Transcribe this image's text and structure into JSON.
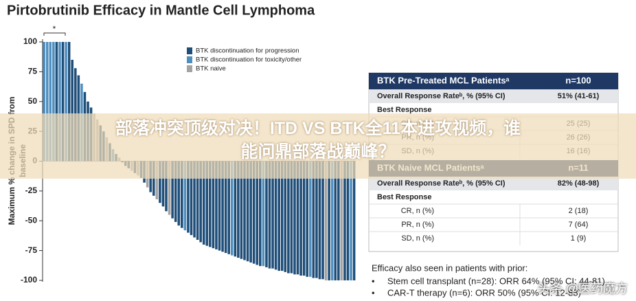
{
  "chart_data": {
    "type": "bar",
    "title": "Pirtobrutinib Efficacy in Mantle Cell Lymphoma",
    "ylabel": [
      "Maximum % change in SPD from",
      "baseline"
    ],
    "annotation": "*",
    "ylim": [
      -100,
      100
    ],
    "yticks": [
      100,
      75,
      50,
      25,
      0,
      -25,
      -50,
      -75,
      -100
    ],
    "grid": false,
    "legend": "upper-center",
    "series": [
      {
        "name": "BTK discontinuation for progression",
        "color": "#1f4e79",
        "values": [
          null,
          null,
          null,
          null,
          100,
          null,
          100,
          null,
          100,
          85,
          78,
          72,
          null,
          58,
          50,
          45,
          null,
          null,
          30,
          25,
          null,
          15,
          null,
          6,
          null,
          -1,
          -4,
          -6,
          null,
          -10,
          null,
          -14,
          -18,
          null,
          -26,
          -29,
          null,
          -35,
          -38,
          -42,
          null,
          -48,
          -51,
          -54,
          -56,
          null,
          -60,
          -62,
          -64,
          -66,
          -68,
          -70,
          -71,
          -72,
          -73,
          -74,
          -75,
          -76,
          -77,
          -78,
          null,
          -80,
          -81,
          -82,
          -83,
          -84,
          -85,
          -86,
          -87,
          -88,
          null,
          -89,
          -90,
          -90,
          -91,
          -92,
          -92,
          -93,
          -94,
          -94,
          -95,
          -95,
          -96,
          -96,
          -97,
          null,
          -98,
          -98,
          -99,
          -99,
          null,
          -100,
          null,
          -100,
          -100,
          null,
          -100,
          -100,
          null,
          -100
        ]
      },
      {
        "name": "BTK discontinuation for toxicity/other",
        "color": "#4f8fc0",
        "values": [
          100,
          100,
          100,
          100,
          null,
          100,
          null,
          100,
          null,
          null,
          null,
          null,
          65,
          null,
          null,
          null,
          null,
          null,
          null,
          null,
          null,
          null,
          10,
          null,
          null,
          null,
          null,
          null,
          null,
          null,
          null,
          null,
          null,
          null,
          null,
          null,
          null,
          null,
          null,
          null,
          null,
          null,
          null,
          null,
          null,
          -58,
          null,
          null,
          null,
          null,
          null,
          null,
          null,
          null,
          null,
          null,
          null,
          null,
          null,
          null,
          -79,
          null,
          null,
          null,
          null,
          null,
          null,
          null,
          null,
          null,
          -88,
          null,
          null,
          null,
          null,
          null,
          null,
          null,
          null,
          null,
          null,
          null,
          null,
          null,
          null,
          -97,
          null,
          null,
          null,
          null,
          null,
          null,
          -100,
          null,
          null,
          null,
          null,
          null,
          -100,
          null
        ]
      },
      {
        "name": "BTK naive",
        "color": "#a3a3a3",
        "values": [
          null,
          null,
          null,
          null,
          null,
          null,
          null,
          null,
          null,
          null,
          null,
          null,
          null,
          null,
          null,
          null,
          40,
          35,
          null,
          null,
          20,
          null,
          null,
          null,
          3,
          null,
          null,
          null,
          -8,
          null,
          -12,
          null,
          null,
          -22,
          null,
          null,
          -32,
          null,
          null,
          null,
          -45,
          null,
          null,
          null,
          null,
          null,
          null,
          null,
          null,
          null,
          null,
          null,
          null,
          null,
          null,
          null,
          null,
          null,
          null,
          null,
          null,
          null,
          null,
          null,
          null,
          null,
          null,
          null,
          null,
          null,
          null,
          null,
          null,
          null,
          null,
          null,
          null,
          null,
          null,
          null,
          null,
          null,
          null,
          null,
          null,
          null,
          null,
          null,
          null,
          null,
          -100,
          null,
          null,
          null,
          null,
          -100,
          null,
          null,
          null,
          null
        ]
      }
    ]
  },
  "table": {
    "sections": [
      {
        "title": "BTK Pre-Treated MCL Patientsᵃ",
        "n": "n=100",
        "orr_label": "Overall Response Rateᵇ, % (95% CI)",
        "orr": "51% (41-61)",
        "best_response": "Best Response",
        "rows": [
          [
            "CR, n (%)",
            "25 (25)"
          ],
          [
            "PR, n (%)",
            "26 (26)"
          ],
          [
            "SD, n (%)",
            "16 (16)"
          ]
        ]
      },
      {
        "title": "BTK Naive MCL Patientsᵃ",
        "n": "n=11",
        "orr_label": "Overall Response Rateᵇ, % (95% CI)",
        "orr": "82% (48-98)",
        "best_response": "Best Response",
        "rows": [
          [
            "CR, n (%)",
            "2 (18)"
          ],
          [
            "PR, n (%)",
            "7 (64)"
          ],
          [
            "SD, n (%)",
            "1 (9)"
          ]
        ]
      }
    ]
  },
  "notes": {
    "heading": "Efficacy also seen in patients with prior:",
    "bullets": [
      "Stem cell transplant (n=28): ORR 64% (95% CI: 44-81)",
      "CAR-T therapy (n=6): ORR 50% (95% CI: 12-88)"
    ]
  },
  "banner": [
    "部落冲突顶级对决！ITD VS BTK全11本进攻视频，谁",
    "能问鼎部落战巅峰？"
  ],
  "watermark": "头条 @医药魔方"
}
